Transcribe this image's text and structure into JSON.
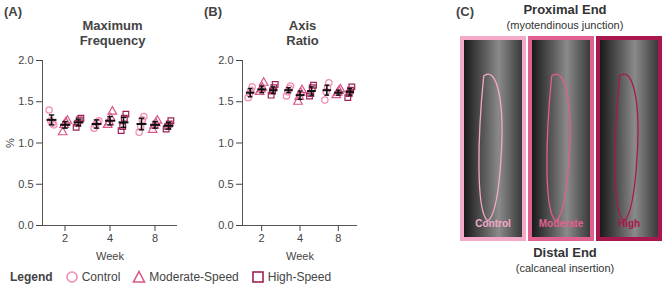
{
  "chart_data": [
    {
      "type": "scatter",
      "panel": "(A)",
      "title": "Maximum\nFrequency",
      "categories": [
        "2",
        "4",
        "8"
      ],
      "xlabel": "Week",
      "ylabel": "%",
      "ylim": [
        0,
        2
      ],
      "yticks": [
        {
          "value": 0,
          "label": "0.0"
        },
        {
          "value": 0.5,
          "label": "0.5"
        },
        {
          "value": 1,
          "label": "1.0"
        },
        {
          "value": 1.5,
          "label": "1.5"
        },
        {
          "value": 2,
          "label": "2.0"
        }
      ],
      "legend": "bottom",
      "series": [
        {
          "name": "Control",
          "color": "#f08cb4",
          "marker": "circle",
          "values": [
            1.28,
            1.23,
            1.23
          ],
          "error": [
            0.06,
            0.05,
            0.07
          ],
          "points": [
            [
              1.4,
              1.27,
              1.24,
              1.22
            ],
            [
              1.18,
              1.22,
              1.25,
              1.27
            ],
            [
              1.13,
              1.2,
              1.28,
              1.32
            ]
          ]
        },
        {
          "name": "Moderate-Speed",
          "color": "#d9568a",
          "marker": "triangle",
          "values": [
            1.22,
            1.27,
            1.22
          ],
          "error": [
            0.04,
            0.05,
            0.04
          ],
          "points": [
            [
              1.13,
              1.22,
              1.25,
              1.27
            ],
            [
              1.22,
              1.25,
              1.3,
              1.38
            ],
            [
              1.16,
              1.21,
              1.24,
              1.27
            ]
          ]
        },
        {
          "name": "High-Speed",
          "color": "#9c2257",
          "marker": "square",
          "values": [
            1.25,
            1.25,
            1.21
          ],
          "error": [
            0.04,
            0.06,
            0.04
          ],
          "points": [
            [
              1.19,
              1.24,
              1.28,
              1.3
            ],
            [
              1.15,
              1.2,
              1.3,
              1.35
            ],
            [
              1.17,
              1.2,
              1.23,
              1.27
            ]
          ]
        }
      ]
    },
    {
      "type": "scatter",
      "panel": "(B)",
      "title": "Axis\nRatio",
      "categories": [
        "2",
        "4",
        "8"
      ],
      "xlabel": "Week",
      "ylabel": "",
      "ylim": [
        0,
        2
      ],
      "yticks": [
        {
          "value": 0,
          "label": "0.0"
        },
        {
          "value": 0.5,
          "label": "0.5"
        },
        {
          "value": 1,
          "label": "1.0"
        },
        {
          "value": 1.5,
          "label": "1.5"
        },
        {
          "value": 2,
          "label": "2.0"
        }
      ],
      "legend": "bottom",
      "series": [
        {
          "name": "Control",
          "color": "#f08cb4",
          "marker": "circle",
          "values": [
            1.61,
            1.64,
            1.64
          ],
          "error": [
            0.05,
            0.03,
            0.06
          ],
          "points": [
            [
              1.55,
              1.6,
              1.64,
              1.68
            ],
            [
              1.57,
              1.62,
              1.66,
              1.69
            ],
            [
              1.52,
              1.62,
              1.67,
              1.73
            ]
          ]
        },
        {
          "name": "Moderate-Speed",
          "color": "#d9568a",
          "marker": "triangle",
          "values": [
            1.65,
            1.58,
            1.61
          ],
          "error": [
            0.04,
            0.05,
            0.03
          ],
          "points": [
            [
              1.62,
              1.65,
              1.67,
              1.73
            ],
            [
              1.5,
              1.56,
              1.61,
              1.64
            ],
            [
              1.58,
              1.61,
              1.63,
              1.65
            ]
          ]
        },
        {
          "name": "High-Speed",
          "color": "#9c2257",
          "marker": "square",
          "values": [
            1.64,
            1.63,
            1.62
          ],
          "error": [
            0.04,
            0.05,
            0.04
          ],
          "points": [
            [
              1.58,
              1.63,
              1.67,
              1.71
            ],
            [
              1.57,
              1.6,
              1.67,
              1.7
            ],
            [
              1.55,
              1.6,
              1.64,
              1.68
            ]
          ]
        }
      ]
    }
  ],
  "legend_title": "Legend",
  "image_panel": {
    "panel": "(C)",
    "top_label": "Proximal End",
    "top_sublabel": "(myotendinous junction)",
    "bottom_label": "Distal End",
    "bottom_sublabel": "(calcaneal insertion)",
    "images": [
      {
        "label": "Control",
        "color": "#f4a9c9"
      },
      {
        "label": "Moderate",
        "color": "#e0608f"
      },
      {
        "label": "High",
        "color": "#a8184f"
      }
    ]
  }
}
